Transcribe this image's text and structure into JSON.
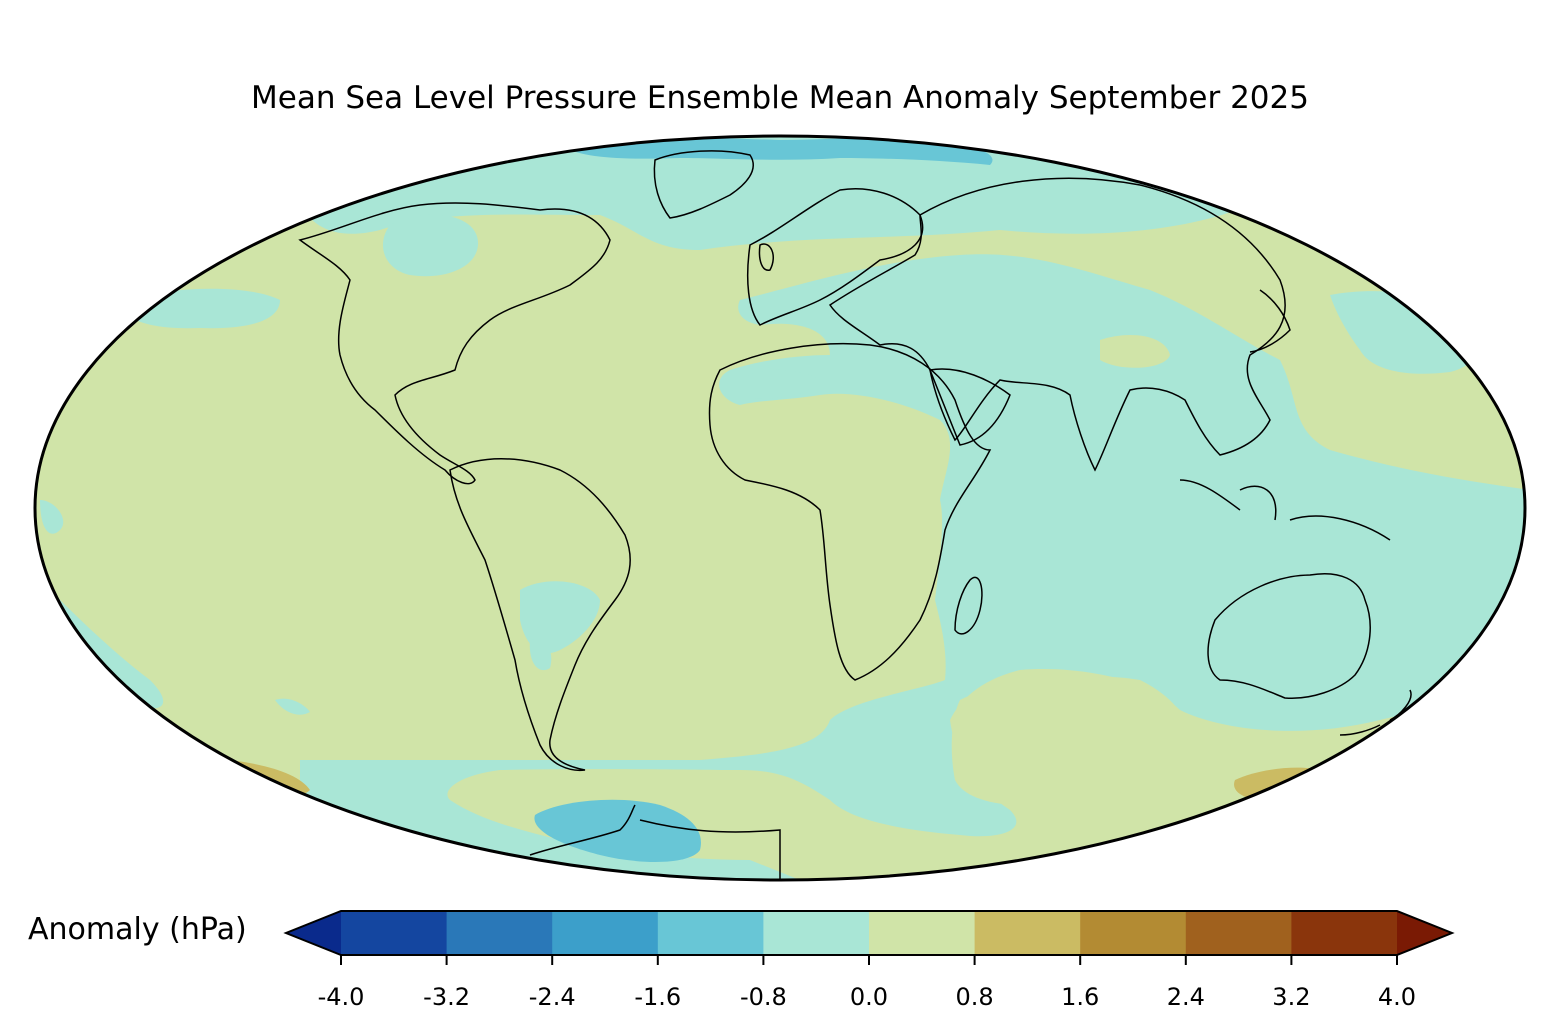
{
  "title": "Mean Sea Level Pressure Ensemble Mean Anomaly September 2025",
  "colorbar": {
    "label": "Anomaly (hPa)",
    "ticks": [
      "-4.0",
      "-3.2",
      "-2.4",
      "-1.6",
      "-0.8",
      "0.0",
      "0.8",
      "1.6",
      "2.4",
      "3.2",
      "4.0"
    ],
    "colors": [
      "#0a2a8c",
      "#1446a0",
      "#2a78b8",
      "#3c9fca",
      "#68c6d6",
      "#a9e6d6",
      "#d0e4a8",
      "#cbbb63",
      "#b38b33",
      "#a0611e",
      "#8a350c",
      "#7a1a04"
    ],
    "extend": "both"
  },
  "map": {
    "projection": "Mollweide",
    "background_anomaly_color": "#d0e4a8",
    "regions_negative_small": "#a9e6d6",
    "regions_negative_mid": "#68c6d6",
    "regions_positive_small": "#cbbb63"
  }
}
